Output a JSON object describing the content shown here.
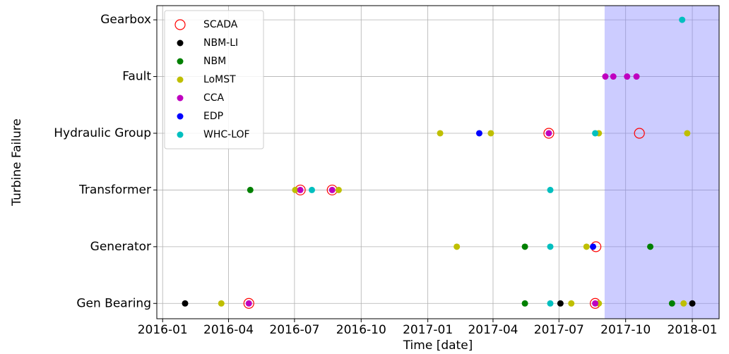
{
  "chart_data": {
    "type": "scatter",
    "xlabel": "Time [date]",
    "ylabel": "Turbine Failure",
    "categories": [
      "Gen Bearing",
      "Generator",
      "Transformer",
      "Hydraulic Group",
      "Fault",
      "Gearbox"
    ],
    "xlim": [
      "2015-12-24",
      "2018-02-07"
    ],
    "xticks": [
      "2016-01",
      "2016-04",
      "2016-07",
      "2016-10",
      "2017-01",
      "2017-04",
      "2017-07",
      "2017-10",
      "2018-01"
    ],
    "ylim": [
      -0.27,
      5.25
    ],
    "grid": true,
    "legend": "upper left",
    "shaded_span": {
      "x": [
        "2017-09-02",
        "2018-02-07"
      ],
      "color": "#7f7fff"
    },
    "series": [
      {
        "name": "SCADA",
        "color": "#ff0000",
        "hollow": true,
        "x": [
          "2016-04-29",
          "2017-08-20",
          "2017-08-21",
          "2016-07-09",
          "2016-08-22",
          "2017-06-17",
          "2017-10-20"
        ],
        "y": [
          "Gen Bearing",
          "Gen Bearing",
          "Generator",
          "Transformer",
          "Transformer",
          "Hydraulic Group",
          "Hydraulic Group"
        ]
      },
      {
        "name": "NBM-LI",
        "color": "#000000",
        "x": [
          "2016-02-01",
          "2017-07-03",
          "2018-01-01"
        ],
        "y": [
          "Gen Bearing",
          "Gen Bearing",
          "Gen Bearing"
        ]
      },
      {
        "name": "NBM",
        "color": "#008000",
        "x": [
          "2017-05-15",
          "2017-12-04",
          "2017-05-15",
          "2017-11-04",
          "2016-05-01"
        ],
        "y": [
          "Gen Bearing",
          "Gen Bearing",
          "Generator",
          "Generator",
          "Transformer"
        ]
      },
      {
        "name": "LoMST",
        "color": "#bfbf00",
        "x": [
          "2016-03-22",
          "2017-07-18",
          "2017-08-25",
          "2017-12-20",
          "2017-02-10",
          "2017-08-08",
          "2016-07-02",
          "2016-08-31",
          "2017-01-18",
          "2017-03-29",
          "2017-08-25",
          "2017-12-25"
        ],
        "y": [
          "Gen Bearing",
          "Gen Bearing",
          "Gen Bearing",
          "Gen Bearing",
          "Generator",
          "Generator",
          "Transformer",
          "Transformer",
          "Hydraulic Group",
          "Hydraulic Group",
          "Hydraulic Group",
          "Hydraulic Group"
        ]
      },
      {
        "name": "CCA",
        "color": "#bf00bf",
        "x": [
          "2016-04-29",
          "2017-08-20",
          "2016-07-09",
          "2016-08-22",
          "2017-06-17",
          "2017-09-03",
          "2017-09-14",
          "2017-10-03",
          "2017-10-16"
        ],
        "y": [
          "Gen Bearing",
          "Gen Bearing",
          "Transformer",
          "Transformer",
          "Hydraulic Group",
          "Fault",
          "Fault",
          "Fault",
          "Fault"
        ]
      },
      {
        "name": "EDP",
        "color": "#0000ff",
        "x": [
          "2017-03-13",
          "2017-08-17"
        ],
        "y": [
          "Hydraulic Group",
          "Generator"
        ]
      },
      {
        "name": "WHC-LOF",
        "color": "#00bfbf",
        "x": [
          "2017-06-19",
          "2017-06-19",
          "2016-07-25",
          "2017-06-19",
          "2017-08-20",
          "2017-12-18"
        ],
        "y": [
          "Gen Bearing",
          "Generator",
          "Transformer",
          "Transformer",
          "Hydraulic Group",
          "Gearbox"
        ]
      }
    ]
  }
}
